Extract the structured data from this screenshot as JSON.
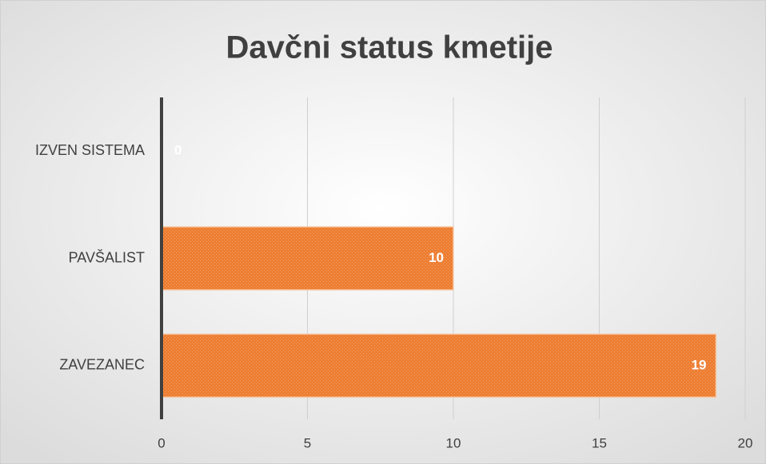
{
  "chart_data": {
    "type": "bar",
    "title": "Davčni status kmetije",
    "categories": [
      "IZVEN SISTEMA",
      "PAVŠALIST",
      "ZAVEZANEC"
    ],
    "values": [
      0,
      10,
      19
    ],
    "color": "#ed7d31",
    "xlim": [
      0,
      20
    ],
    "xticks": [
      0,
      5,
      10,
      15,
      20
    ],
    "grid": true,
    "data_labels": true
  }
}
